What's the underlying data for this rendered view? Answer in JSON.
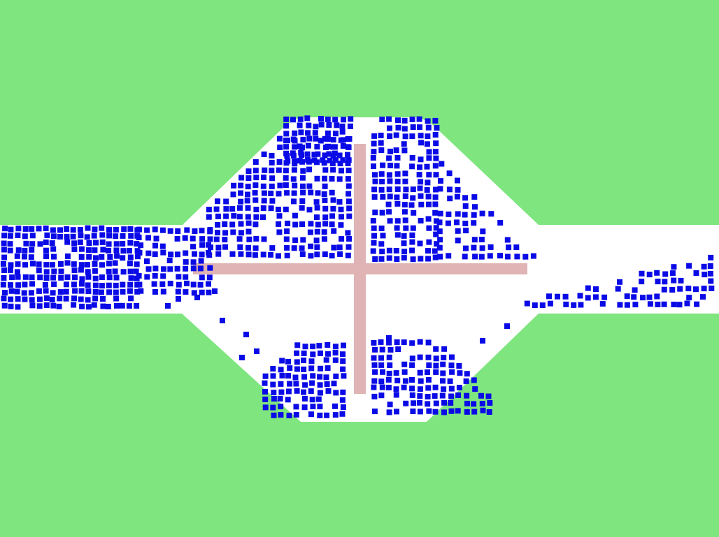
{
  "scene": {
    "type": "particle-flow-simulation",
    "colors": {
      "background": "#7fe57f",
      "channel": "#ffffff",
      "obstacle": "#e0b4b4",
      "particle": "#0a0ae6"
    },
    "obstacle": "cross"
  }
}
